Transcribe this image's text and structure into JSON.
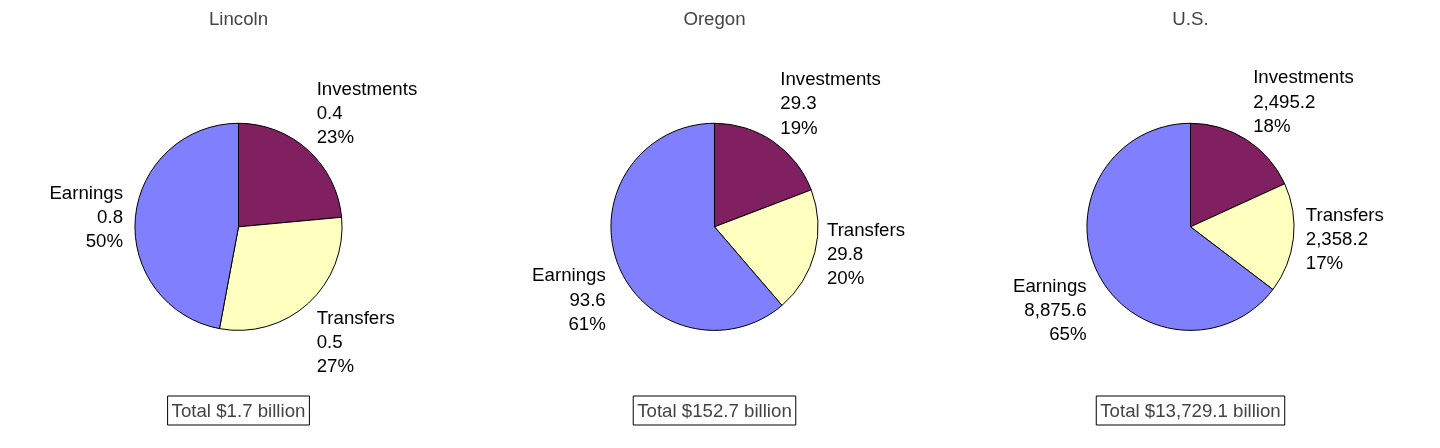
{
  "chart_data": [
    {
      "type": "pie",
      "title": "Lincoln",
      "categories": [
        "Investments",
        "Transfers",
        "Earnings"
      ],
      "values": [
        0.4,
        0.5,
        0.8
      ],
      "colors": [
        "#802060",
        "#ffffc0",
        "#8080ff"
      ],
      "value_labels": [
        "0.4\n23%",
        "0.5\n27%",
        "0.8\n50%"
      ],
      "annotations": [
        "Total $1.7 billion"
      ]
    },
    {
      "type": "pie",
      "title": "Oregon",
      "categories": [
        "Investments",
        "Transfers",
        "Earnings"
      ],
      "values": [
        29.3,
        29.8,
        93.6
      ],
      "colors": [
        "#802060",
        "#ffffc0",
        "#8080ff"
      ],
      "value_labels": [
        "29.3\n19%",
        "29.8\n20%",
        "93.6\n61%"
      ],
      "annotations": [
        "Total $152.7 billion"
      ]
    },
    {
      "type": "pie",
      "title": "U.S.",
      "categories": [
        "Investments",
        "Transfers",
        "Earnings"
      ],
      "values": [
        2495.2,
        2358.2,
        8875.6
      ],
      "colors": [
        "#802060",
        "#ffffc0",
        "#8080ff"
      ],
      "value_labels": [
        "2,495.2\n18%",
        "2,358.2\n17%",
        "8,875.6\n65%"
      ],
      "annotations": [
        "Total $13,729.1 billion"
      ]
    }
  ]
}
